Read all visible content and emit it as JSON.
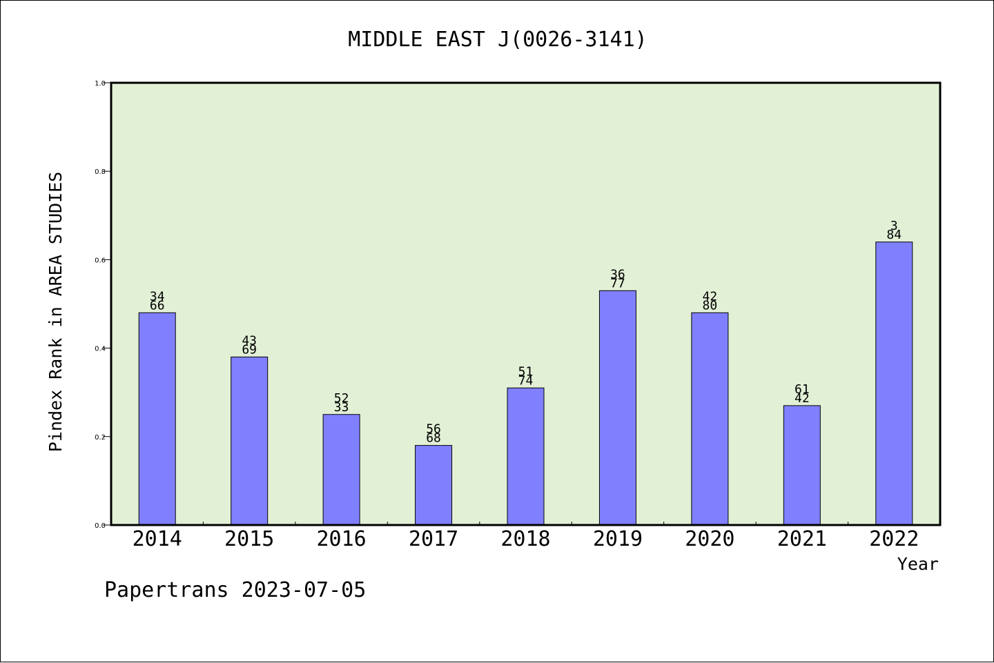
{
  "chart_data": {
    "type": "bar",
    "title": "MIDDLE EAST J(0026-3141)",
    "xlabel": "Year",
    "ylabel": "Pindex Rank in AREA STUDIES",
    "footer": "Papertrans 2023-07-05",
    "categories": [
      "2014",
      "2015",
      "2016",
      "2017",
      "2018",
      "2019",
      "2020",
      "2021",
      "2022"
    ],
    "values": [
      0.48,
      0.38,
      0.25,
      0.18,
      0.31,
      0.53,
      0.48,
      0.27,
      0.64
    ],
    "label_top": [
      "34",
      "43",
      "52",
      "56",
      "51",
      "36",
      "42",
      "61",
      "3"
    ],
    "label_bottom": [
      "66",
      "69",
      "33",
      "68",
      "74",
      "77",
      "80",
      "42",
      "84"
    ],
    "ylim": [
      0,
      1.0
    ],
    "yticks": [
      "0.0",
      "0.2",
      "0.4",
      "0.6",
      "0.8",
      "1.0"
    ],
    "grid": false,
    "colors": {
      "plot_background": "#e2f0d6",
      "bar_fill": "#8080ff",
      "bar_stroke": "#000000"
    }
  }
}
